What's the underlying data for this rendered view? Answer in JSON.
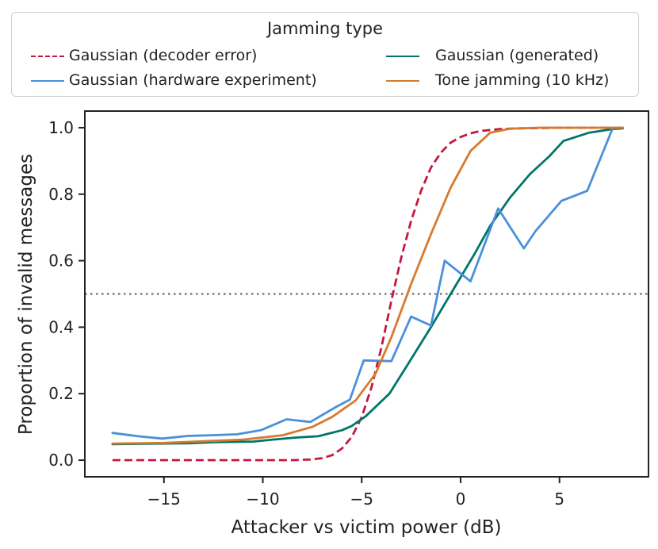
{
  "chart_data": {
    "type": "line",
    "title": "",
    "xlabel": "Attacker vs victim power (dB)",
    "ylabel": "Proportion of invalid messages",
    "xlim": [
      -19,
      9.5
    ],
    "ylim": [
      -0.05,
      1.05
    ],
    "xticks": [
      -15,
      -10,
      -5,
      0,
      5
    ],
    "xtick_labels": [
      "−15",
      "−10",
      "−5",
      "0",
      "5"
    ],
    "yticks": [
      0.0,
      0.2,
      0.4,
      0.6,
      0.8,
      1.0
    ],
    "ytick_labels": [
      "0.0",
      "0.2",
      "0.4",
      "0.6",
      "0.8",
      "1.0"
    ],
    "threshold": {
      "y": 0.5,
      "style": "dotted",
      "color": "#7a7a7a"
    },
    "legend": {
      "title": "Jamming type",
      "placement": "above",
      "entries": [
        {
          "label": "Gaussian (decoder error)",
          "series": 0
        },
        {
          "label": "Gaussian (generated)",
          "series": 1
        },
        {
          "label": "Gaussian (hardware experiment)",
          "series": 2
        },
        {
          "label": "Tone jamming (10 kHz)",
          "series": 3
        }
      ]
    },
    "series": [
      {
        "name": "Gaussian (decoder error)",
        "color": "#c2173f",
        "dash": "dashed",
        "x": [
          -17.6,
          -16,
          -14,
          -12,
          -10,
          -8.5,
          -7.6,
          -7,
          -6.5,
          -6,
          -5.5,
          -5,
          -4.5,
          -4,
          -3.5,
          -3,
          -2.5,
          -2,
          -1.5,
          -1,
          -0.5,
          0,
          0.5,
          1,
          2,
          3,
          5,
          8.2
        ],
        "y": [
          0,
          0,
          0,
          0,
          0,
          0,
          0.002,
          0.006,
          0.015,
          0.035,
          0.07,
          0.13,
          0.22,
          0.34,
          0.48,
          0.61,
          0.72,
          0.81,
          0.88,
          0.925,
          0.955,
          0.972,
          0.983,
          0.99,
          0.996,
          0.998,
          1.0,
          1.0
        ]
      },
      {
        "name": "Gaussian (generated)",
        "color": "#00756a",
        "dash": "solid",
        "x": [
          -17.6,
          -15,
          -13.7,
          -12.5,
          -10.5,
          -9.5,
          -8.3,
          -7.2,
          -6,
          -5.5,
          -4.8,
          -3.6,
          -2.7,
          -1.5,
          -0.5,
          0.7,
          1.5,
          2.5,
          3.5,
          4.5,
          5.2,
          6.5,
          7.7,
          8.2
        ],
        "y": [
          0.048,
          0.05,
          0.051,
          0.054,
          0.056,
          0.062,
          0.068,
          0.072,
          0.09,
          0.103,
          0.132,
          0.2,
          0.285,
          0.4,
          0.5,
          0.62,
          0.705,
          0.79,
          0.86,
          0.915,
          0.96,
          0.985,
          0.996,
          0.998
        ]
      },
      {
        "name": "Gaussian (hardware experiment)",
        "color": "#4a90d9",
        "dash": "solid",
        "x": [
          -17.6,
          -16.3,
          -15.1,
          -13.8,
          -12.6,
          -11.3,
          -10.1,
          -8.8,
          -7.6,
          -6.3,
          -5.6,
          -4.9,
          -3.5,
          -2.5,
          -1.5,
          -0.8,
          0.5,
          1.9,
          3.2,
          3.8,
          5.1,
          6.4,
          7.7,
          8.2
        ],
        "y": [
          0.082,
          0.072,
          0.065,
          0.073,
          0.075,
          0.078,
          0.09,
          0.123,
          0.115,
          0.16,
          0.182,
          0.3,
          0.298,
          0.432,
          0.405,
          0.6,
          0.538,
          0.757,
          0.637,
          0.69,
          0.78,
          0.81,
          1.0,
          1.0
        ]
      },
      {
        "name": "Tone jamming (10 kHz)",
        "color": "#d67a2e",
        "dash": "solid",
        "x": [
          -17.6,
          -15,
          -13,
          -11,
          -9,
          -7.5,
          -6.5,
          -5.3,
          -4.3,
          -3.5,
          -2.5,
          -1.5,
          -0.5,
          0.5,
          1.5,
          2.5,
          4,
          6,
          8.2
        ],
        "y": [
          0.05,
          0.052,
          0.057,
          0.062,
          0.075,
          0.1,
          0.13,
          0.18,
          0.26,
          0.37,
          0.53,
          0.68,
          0.82,
          0.93,
          0.985,
          0.997,
          1.0,
          1.0,
          1.0
        ]
      }
    ]
  }
}
